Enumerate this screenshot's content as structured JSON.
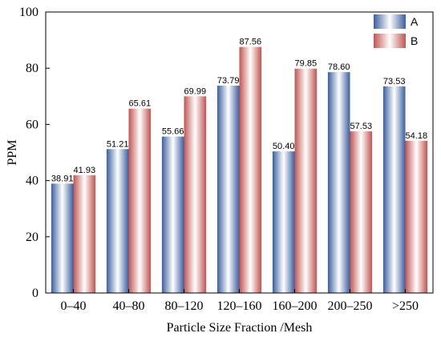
{
  "chart_data": {
    "type": "bar",
    "title": "",
    "xlabel": "Particle Size Fraction /Mesh",
    "ylabel": "PPM",
    "categories": [
      "0–40",
      "40–80",
      "80–120",
      "120–160",
      "160–200",
      "200–250",
      ">250"
    ],
    "series": [
      {
        "name": "A",
        "values": [
          38.91,
          51.21,
          55.66,
          73.79,
          50.4,
          78.6,
          73.53
        ],
        "value_labels": [
          "38.91",
          "51.21",
          "55.66",
          "73.79",
          "50.40",
          "78.60",
          "73.53"
        ]
      },
      {
        "name": "B",
        "values": [
          41.93,
          65.61,
          69.99,
          87.56,
          79.85,
          57.53,
          54.18
        ],
        "value_labels": [
          "41.93",
          "65.61",
          "69.99",
          "87.56",
          "79.85",
          "57.53",
          "54.18"
        ]
      }
    ],
    "ylim": [
      0,
      100
    ],
    "yticks": [
      "0",
      "20",
      "40",
      "60",
      "80",
      "100"
    ],
    "grid": false,
    "legend_position": "top-right"
  },
  "colors": {
    "series_a_dark": "#3a5f9e",
    "series_a_light": "#ffffff",
    "series_b_dark": "#c2544f",
    "series_b_light": "#ffffff",
    "axis": "#000000"
  }
}
